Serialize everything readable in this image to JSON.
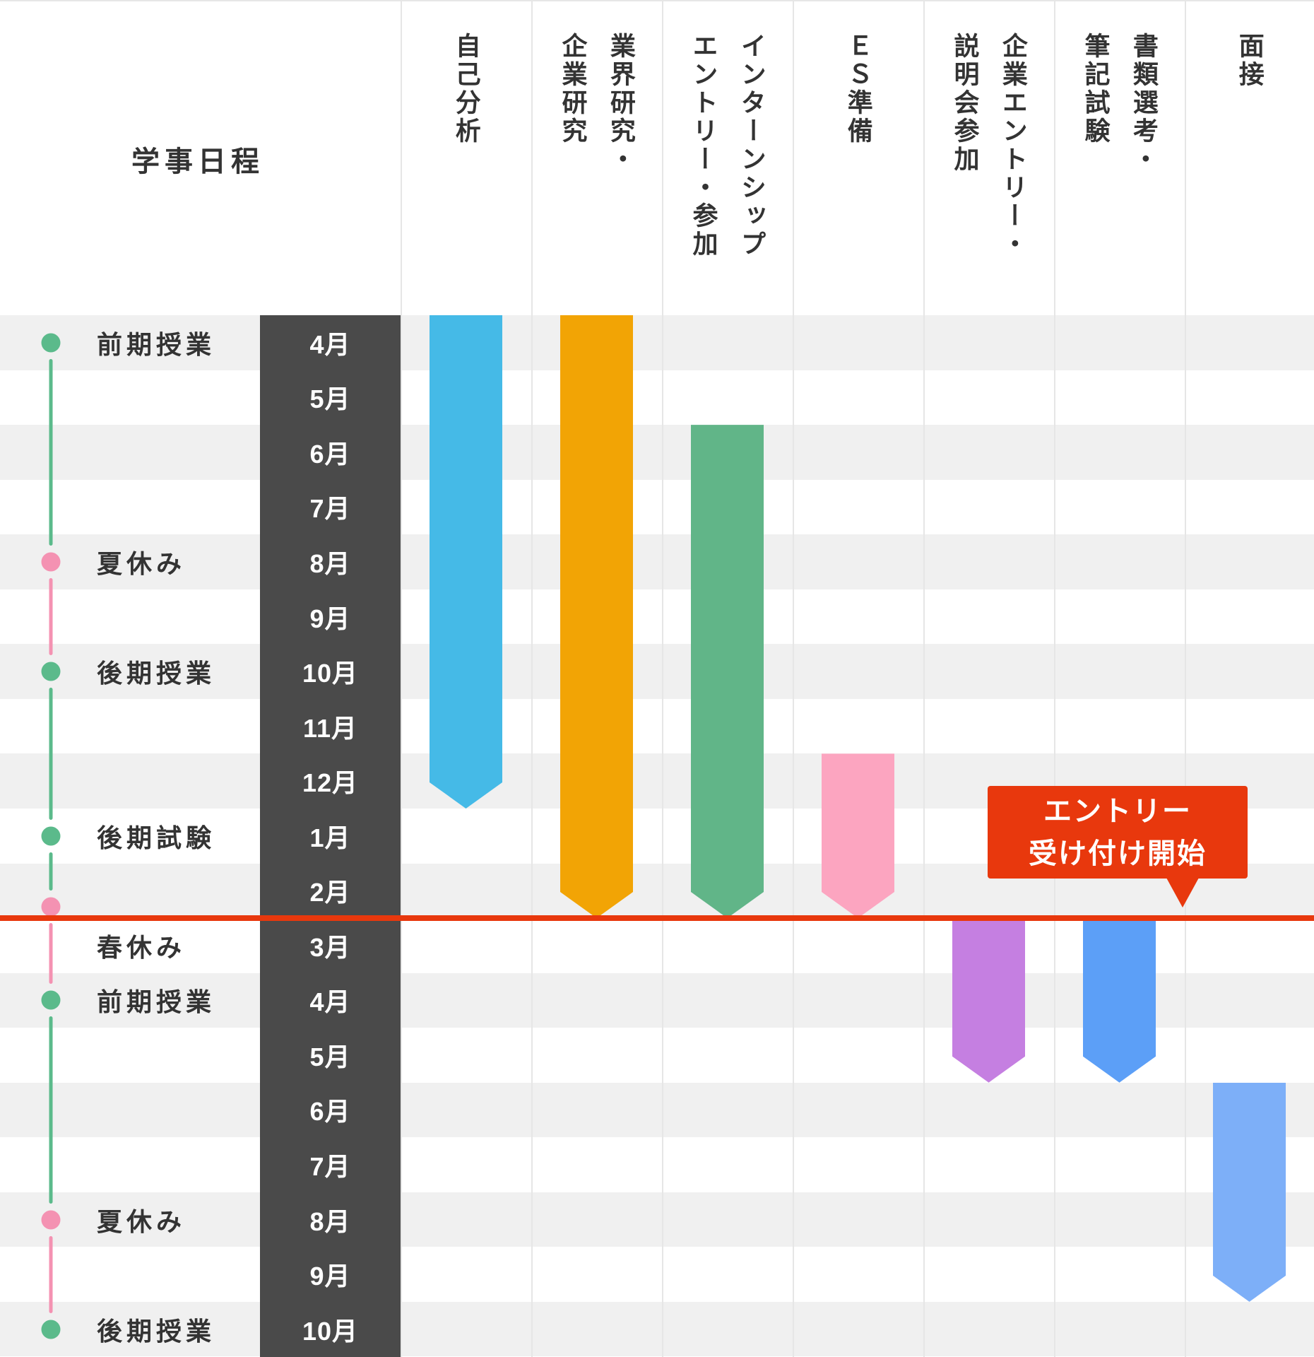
{
  "schedule_header": "学事日程",
  "months": [
    "4月",
    "5月",
    "6月",
    "7月",
    "8月",
    "9月",
    "10月",
    "11月",
    "12月",
    "1月",
    "2月",
    "3月",
    "4月",
    "5月",
    "6月",
    "7月",
    "8月",
    "9月",
    "10月"
  ],
  "academic_events": [
    {
      "label": "前期授業",
      "row": 0,
      "dot": "green",
      "dot_row": 0
    },
    {
      "label": "夏休み",
      "row": 4,
      "dot": "pink",
      "dot_row": 4
    },
    {
      "label": "後期授業",
      "row": 6,
      "dot": "green",
      "dot_row": 6
    },
    {
      "label": "後期試験",
      "row": 9,
      "dot": "green",
      "dot_row": 9
    },
    {
      "label": "春休み",
      "row": 11,
      "dot": "pink",
      "dot_row": 10.29
    },
    {
      "label": "前期授業",
      "row": 12,
      "dot": "green",
      "dot_row": 12
    },
    {
      "label": "夏休み",
      "row": 16,
      "dot": "pink",
      "dot_row": 16
    },
    {
      "label": "後期授業",
      "row": 18,
      "dot": "green",
      "dot_row": 18
    }
  ],
  "timeline_segments": [
    "green",
    "pink",
    "green",
    "green",
    "pink",
    "green",
    "pink"
  ],
  "activities": [
    {
      "name": "自己分析",
      "title": "自己分析",
      "color": "#45BAE7",
      "start_row": 0,
      "end_row": 8
    },
    {
      "name": "業界研究・企業研究",
      "title": "業界研究・\n企業研究",
      "color": "#F2A405",
      "start_row": 0,
      "end_row": 10
    },
    {
      "name": "インターンシップ エントリー・参加",
      "title": "インターンシップ\nエントリー・参加",
      "color": "#61B588",
      "start_row": 2,
      "end_row": 10
    },
    {
      "name": "ES準備",
      "title": "ＥＳ準備",
      "color": "#FCA5C0",
      "start_row": 8,
      "end_row": 10
    },
    {
      "name": "企業エントリー・説明会参加",
      "title": "企業エントリー・\n説明会参加",
      "color": "#C57FE1",
      "start_row": 11,
      "end_row": 13
    },
    {
      "name": "書類選考・筆記試験",
      "title": "書類選考・\n筆記試験",
      "color": "#5C9FF7",
      "start_row": 11,
      "end_row": 13
    },
    {
      "name": "面接",
      "title": "面接",
      "color": "#7DAFF8",
      "start_row": 14,
      "end_row": 17
    }
  ],
  "callout": {
    "line1": "エントリー",
    "line2": "受け付け開始"
  },
  "colors": {
    "red_accent": "#E8380D",
    "dark_column": "#4A4A4A",
    "stripe": "#F0F0F0",
    "separator": "#E6E6E6",
    "text": "#333333",
    "month_text": "#FFFFFF",
    "callout_text": "#FFFFFF",
    "timeline_green": "#5BBA8B",
    "timeline_pink": "#F492B2"
  },
  "chart_data": {
    "type": "bar",
    "subtype": "gantt-schedule",
    "title": "",
    "time_axis_label": "学事日程",
    "time_categories": [
      "4月",
      "5月",
      "6月",
      "7月",
      "8月",
      "9月",
      "10月",
      "11月",
      "12月",
      "1月",
      "2月",
      "3月",
      "4月",
      "5月",
      "6月",
      "7月",
      "8月",
      "9月",
      "10月"
    ],
    "series": [
      {
        "name": "自己分析",
        "start_month": "4月",
        "end_month": "12月"
      },
      {
        "name": "業界研究・企業研究",
        "start_month": "4月",
        "end_month": "2月"
      },
      {
        "name": "インターンシップ エントリー・参加",
        "start_month": "6月",
        "end_month": "2月"
      },
      {
        "name": "ＥＳ準備",
        "start_month": "12月",
        "end_month": "2月"
      },
      {
        "name": "企業エントリー・説明会参加",
        "start_month": "3月",
        "end_month": "5月"
      },
      {
        "name": "書類選考・筆記試験",
        "start_month": "3月",
        "end_month": "5月"
      },
      {
        "name": "面接",
        "start_month": "6月",
        "end_month": "9月"
      }
    ],
    "academic_timeline": [
      {
        "label": "前期授業",
        "month": "4月"
      },
      {
        "label": "夏休み",
        "month": "8月"
      },
      {
        "label": "後期授業",
        "month": "10月"
      },
      {
        "label": "後期試験",
        "month": "1月"
      },
      {
        "label": "春休み",
        "month": "3月"
      },
      {
        "label": "前期授業",
        "month": "4月"
      },
      {
        "label": "夏休み",
        "month": "8月"
      },
      {
        "label": "後期授業",
        "month": "10月"
      }
    ],
    "annotations": [
      "エントリー受け付け開始"
    ],
    "legend_position": "none",
    "grid": true
  }
}
